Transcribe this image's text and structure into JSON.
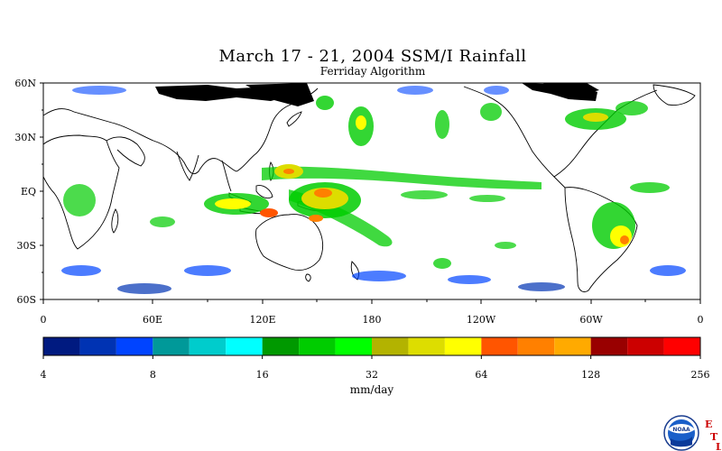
{
  "title": "March 17 - 21, 2004 SSM/I Rainfall",
  "subtitle": "Ferriday Algorithm",
  "lat_labels": [
    "60N",
    "30N",
    "EQ",
    "30S",
    "60S"
  ],
  "lon_labels": [
    "0",
    "60E",
    "120E",
    "180",
    "120W",
    "60W",
    "0"
  ],
  "colorbar": {
    "unit": "mm/day",
    "tick_labels": [
      "4",
      "8",
      "16",
      "32",
      "64",
      "128",
      "256"
    ],
    "colors": [
      "#001a80",
      "#0033b3",
      "#0044ff",
      "#009999",
      "#00cccc",
      "#00ffff",
      "#009900",
      "#00cc00",
      "#00ff00",
      "#b3b300",
      "#dddd00",
      "#ffff00",
      "#ff5500",
      "#ff8000",
      "#ffaa00",
      "#990000",
      "#cc0000",
      "#ff0000"
    ]
  },
  "logo": {
    "text": "NOAA",
    "letters": [
      "E",
      "T",
      "L"
    ],
    "icon": "noaa-seal-icon"
  }
}
